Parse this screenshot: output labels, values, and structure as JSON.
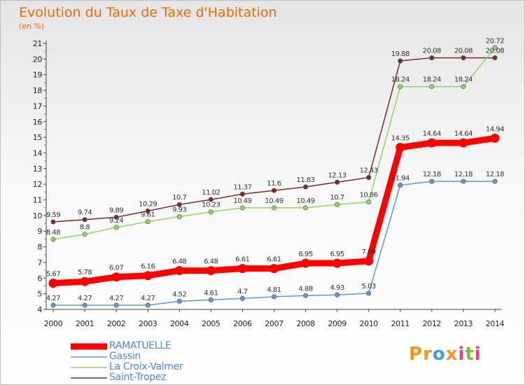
{
  "header": {
    "title": "Evolution du Taux de Taxe d'Habitation",
    "subtitle": "(en %)"
  },
  "logo": {
    "text": "Proxiti",
    "letters": [
      "P",
      "r",
      "o",
      "x",
      "i",
      "t",
      "i"
    ],
    "colors": [
      "#f7931e",
      "#f7931e",
      "#3aa0e0",
      "#f7931e",
      "#e83e8c",
      "#7cbf2e",
      "#e83e8c"
    ]
  },
  "chart_data": {
    "type": "line",
    "x": [
      2000,
      2001,
      2002,
      2003,
      2004,
      2005,
      2006,
      2007,
      2008,
      2009,
      2010,
      2011,
      2012,
      2013,
      2014
    ],
    "ylim": [
      4,
      21
    ],
    "yticks": [
      4,
      5,
      6,
      7,
      8,
      9,
      10,
      11,
      12,
      13,
      14,
      15,
      16,
      17,
      18,
      19,
      20,
      21
    ],
    "grid": false,
    "legend": "bottom-left",
    "series": [
      {
        "name": "Saint-Tropez",
        "color": "#7b2a2a",
        "width": 1.5,
        "labelPos": "above",
        "labels": [
          "9.59",
          "9.74",
          "9.89",
          "10.29",
          "10.7",
          "11.02",
          "11.37",
          "11.6",
          "11.83",
          "12.13",
          "12.43",
          "19.88",
          "20.08",
          "20.08",
          "20.08"
        ],
        "values": [
          9.59,
          9.74,
          9.89,
          10.29,
          10.7,
          11.02,
          11.37,
          11.6,
          11.83,
          12.13,
          12.43,
          19.88,
          20.08,
          20.08,
          20.08
        ]
      },
      {
        "name": "La Croix-Valmer",
        "color": "#8ed65c",
        "width": 1.5,
        "labelPos": "above",
        "labels": [
          "8.48",
          "8.8",
          "9.24",
          "9.61",
          "9.93",
          "10.23",
          "10.49",
          "10.49",
          "10.49",
          "10.7",
          "10.86",
          "18.24",
          "18.24",
          "18.24",
          "20.72"
        ],
        "values": [
          8.48,
          8.8,
          9.24,
          9.61,
          9.93,
          10.23,
          10.49,
          10.49,
          10.49,
          10.7,
          10.86,
          18.24,
          18.24,
          18.24,
          20.72
        ]
      },
      {
        "name": "Gassin",
        "color": "#5b9bd5",
        "width": 1.5,
        "labelPos": "above",
        "labels": [
          "4.27",
          "4.27",
          "4.27",
          "4.27",
          "4.52",
          "4.61",
          "4.7",
          "4.81",
          "4.88",
          "4.93",
          "5.03",
          "11.94",
          "12.18",
          "12.18",
          "12.18"
        ],
        "values": [
          4.27,
          4.27,
          4.27,
          4.27,
          4.52,
          4.61,
          4.7,
          4.81,
          4.88,
          4.93,
          5.03,
          11.94,
          12.18,
          12.18,
          12.18
        ]
      },
      {
        "name": "RAMATUELLE",
        "color": "#ff0000",
        "width": 9,
        "labelPos": "above",
        "labels": [
          "5.67",
          "5.78",
          "6.07",
          "6.16",
          "6.48",
          "6.48",
          "6.61",
          "6.61",
          "6.95",
          "6.95",
          "7.09",
          "14.35",
          "14.64",
          "14.64",
          "14.94"
        ],
        "values": [
          5.67,
          5.78,
          6.07,
          6.16,
          6.48,
          6.48,
          6.61,
          6.61,
          6.95,
          6.95,
          7.09,
          14.35,
          14.64,
          14.64,
          14.94
        ]
      }
    ],
    "legend_order": [
      "RAMATUELLE",
      "Gassin",
      "La Croix-Valmer",
      "Saint-Tropez"
    ]
  }
}
